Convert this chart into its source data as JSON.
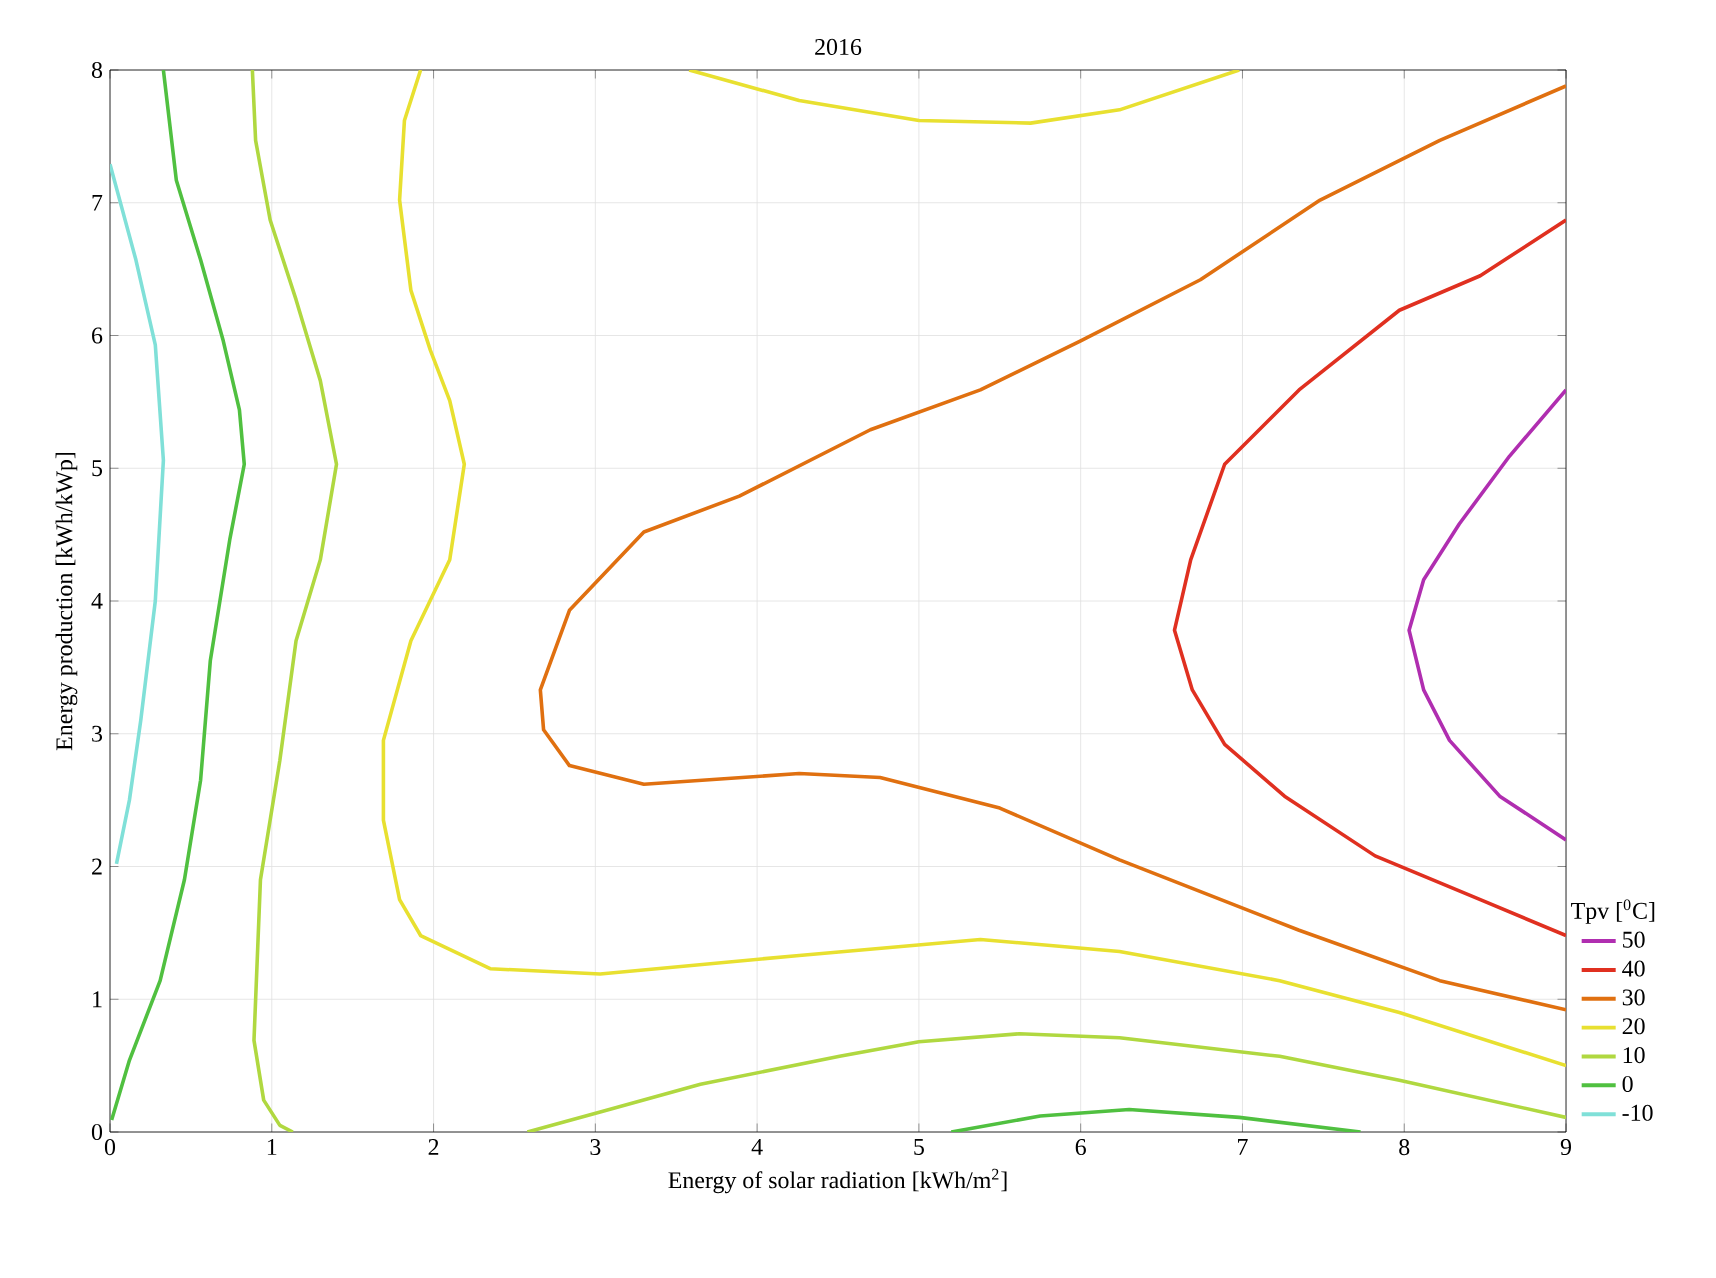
{
  "chart_data": {
    "type": "line",
    "title": "2016",
    "xlabel": "Energy of solar radiation [kWh/m$^{2}$]",
    "ylabel": "Energy production [kWh/kWp]",
    "legend_title": "Tpv [$^{0}$C]",
    "xlim": [
      0,
      9
    ],
    "ylim": [
      0,
      8
    ],
    "xticks": [
      0,
      1,
      2,
      3,
      4,
      5,
      6,
      7,
      8,
      9
    ],
    "yticks": [
      0,
      1,
      2,
      3,
      4,
      5,
      6,
      7,
      8
    ],
    "grid": true,
    "legend": "right",
    "marker": "none",
    "line_style": "solid",
    "series": [
      {
        "name": "50",
        "color": "#b02eb0",
        "x": [
          9,
          8.65,
          8.34,
          8.12,
          8.03,
          8.12,
          8.28,
          8.59,
          9
        ],
        "values": [
          5.59,
          5.09,
          4.58,
          4.16,
          3.78,
          3.33,
          2.95,
          2.53,
          2.2
        ]
      },
      {
        "name": "40",
        "color": "#e03020",
        "x": [
          9,
          8.47,
          7.97,
          7.35,
          6.89,
          6.68,
          6.58,
          6.69,
          6.89,
          7.26,
          7.82,
          8.47,
          9
        ],
        "values": [
          6.87,
          6.45,
          6.19,
          5.59,
          5.03,
          4.31,
          3.78,
          3.33,
          2.92,
          2.53,
          2.08,
          1.75,
          1.48
        ]
      },
      {
        "name": "30",
        "color": "#e07010",
        "x": [
          9,
          8.22,
          7.48,
          6.74,
          6.0,
          5.38,
          4.7,
          3.89,
          3.3,
          2.84,
          2.66,
          2.68,
          2.84,
          3.3,
          4.26,
          4.76,
          5.5,
          6.24,
          7.35,
          8.22,
          9
        ],
        "values": [
          7.88,
          7.47,
          7.02,
          6.42,
          5.96,
          5.59,
          5.29,
          4.79,
          4.52,
          3.93,
          3.33,
          3.03,
          2.76,
          2.62,
          2.7,
          2.67,
          2.44,
          2.05,
          1.52,
          1.14,
          0.92
        ]
      },
      {
        "name": "20",
        "color": "#e8e030",
        "x": [
          1.92,
          1.82,
          1.79,
          1.86,
          1.98,
          2.1,
          2.19,
          2.1,
          1.86,
          1.69,
          1.69,
          1.79,
          1.92,
          2.35,
          3.03,
          4.26,
          5.38,
          6.24,
          7.23,
          7.97,
          9,
          null,
          3.58,
          4.26,
          5.0,
          5.69,
          6.24,
          6.98
        ],
        "values": [
          8,
          7.62,
          7.02,
          6.34,
          5.89,
          5.51,
          5.03,
          4.31,
          3.7,
          2.95,
          2.35,
          1.75,
          1.48,
          1.23,
          1.19,
          1.33,
          1.45,
          1.36,
          1.14,
          0.9,
          0.5,
          null,
          8,
          7.77,
          7.62,
          7.6,
          7.7,
          8
        ]
      },
      {
        "name": "10",
        "color": "#b0d840",
        "x": [
          0.88,
          0.9,
          0.99,
          1.15,
          1.3,
          1.4,
          1.3,
          1.15,
          1.05,
          0.93,
          0.89,
          0.95,
          1.05,
          1.13,
          null,
          2.58,
          3.03,
          3.65,
          4.51,
          5.0,
          5.62,
          6.24,
          7.23,
          7.97,
          9
        ],
        "values": [
          8,
          7.47,
          6.87,
          6.27,
          5.66,
          5.03,
          4.31,
          3.7,
          2.8,
          1.9,
          0.69,
          0.24,
          0.05,
          0,
          null,
          0,
          0.15,
          0.36,
          0.57,
          0.68,
          0.74,
          0.71,
          0.57,
          0.39,
          0.11
        ]
      },
      {
        "name": "0",
        "color": "#50c040",
        "x": [
          0.33,
          0.41,
          0.56,
          0.7,
          0.8,
          0.83,
          0.74,
          0.62,
          0.56,
          0.46,
          0.31,
          0.12,
          0.01,
          null,
          5.2,
          5.75,
          6.3,
          6.98,
          7.73
        ],
        "values": [
          8,
          7.17,
          6.57,
          5.96,
          5.44,
          5.03,
          4.46,
          3.55,
          2.65,
          1.9,
          1.14,
          0.54,
          0.09,
          null,
          0,
          0.12,
          0.17,
          0.11,
          0
        ]
      },
      {
        "name": "-10",
        "color": "#80e0d8",
        "x": [
          0,
          0.16,
          0.28,
          0.33,
          0.28,
          0.19,
          0.12,
          0.04
        ],
        "values": [
          7.29,
          6.57,
          5.93,
          5.06,
          4.0,
          3.1,
          2.5,
          2.02
        ]
      }
    ]
  }
}
